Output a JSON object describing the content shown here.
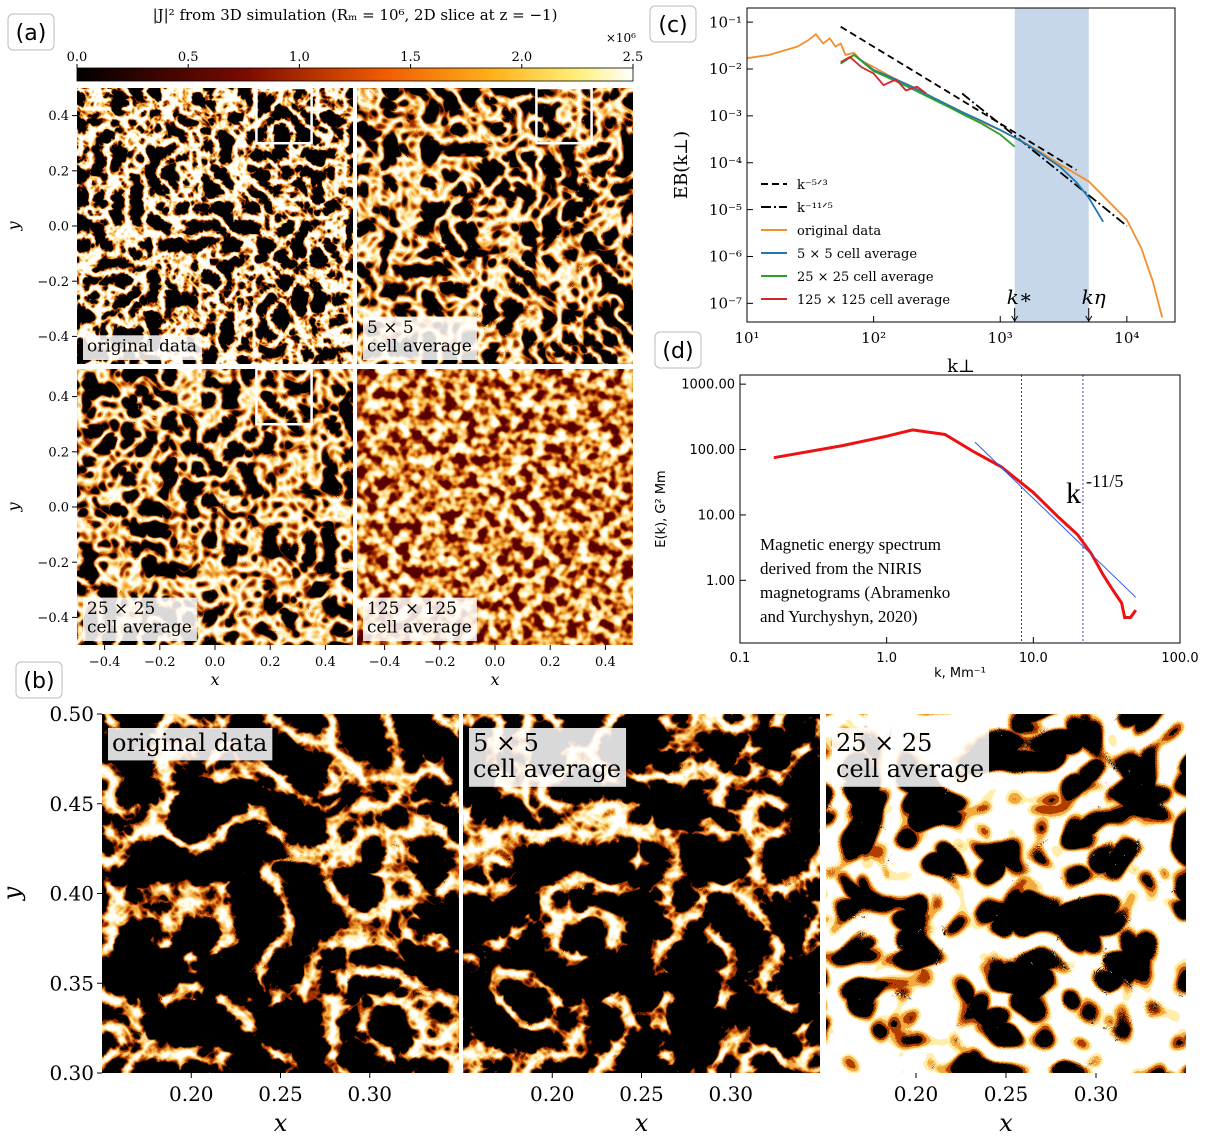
{
  "chart_data": [
    {
      "type": "heatmap",
      "panel_label": "(a)",
      "title": "|J|² from 3D simulation (Rₘ = 10⁶, 2D slice at z = −1)",
      "colorbar": {
        "lim": [
          0,
          2.5
        ],
        "scale_label": "×10⁶",
        "ticks": [
          {
            "value": 0,
            "label": "0.0"
          },
          0.5,
          {
            "value": 1,
            "label": "1.0"
          },
          1.5,
          {
            "value": 2,
            "label": "2.0"
          },
          2.5
        ]
      },
      "xlabel": "x",
      "ylabel": "y",
      "xlim": [
        -0.5,
        0.5
      ],
      "ylim": [
        -0.5,
        0.5
      ],
      "xticks": [
        {
          "value": -0.4,
          "label": "−0.4"
        },
        {
          "value": -0.2,
          "label": "−0.2"
        },
        {
          "value": 0,
          "label": "0.0"
        },
        0.2,
        0.4
      ],
      "yticks": [
        {
          "value": -0.4,
          "label": "−0.4"
        },
        {
          "value": -0.2,
          "label": "−0.2"
        },
        {
          "value": 0,
          "label": "0.0"
        },
        0.2,
        0.4
      ],
      "panels": [
        {
          "label": [
            "original data"
          ],
          "zoom_box": true
        },
        {
          "label": [
            "5 × 5",
            "cell average"
          ],
          "zoom_box": true
        },
        {
          "label": [
            "25 × 25",
            "cell average"
          ],
          "zoom_box": true
        },
        {
          "label": [
            "125 × 125",
            "cell average"
          ],
          "zoom_box": false
        }
      ]
    },
    {
      "type": "line",
      "panel_label": "(c)",
      "log_x": true,
      "log_y": true,
      "xlabel": "k⊥",
      "ylabel": "EB(k⊥)",
      "xlim": [
        10,
        24000
      ],
      "ylim": [
        4e-08,
        0.2
      ],
      "xticks": [
        {
          "value": 10,
          "label": "10¹"
        },
        {
          "value": 100,
          "label": "10²"
        },
        {
          "value": 1000,
          "label": "10³"
        },
        {
          "value": 10000,
          "label": "10⁴"
        }
      ],
      "yticks": [
        {
          "value": 1e-07,
          "label": "10⁻⁷"
        },
        {
          "value": 1e-06,
          "label": "10⁻⁶"
        },
        {
          "value": 1e-05,
          "label": "10⁻⁵"
        },
        {
          "value": 0.0001,
          "label": "10⁻⁴"
        },
        {
          "value": 0.001,
          "label": "10⁻³"
        },
        {
          "value": 0.01,
          "label": "10⁻²"
        },
        {
          "value": 0.1,
          "label": "10⁻¹"
        }
      ],
      "shade": [
        1300,
        5000
      ],
      "shade_color": "#c5d7e8",
      "annotations": [
        "k∗",
        "kη"
      ],
      "legend": "lower left",
      "series": [
        {
          "name": "k⁻⁵ᐟ³",
          "color": "#000000",
          "dash": "dashed",
          "x": [
            55,
            4000
          ],
          "values": [
            0.08,
            7e-05
          ]
        },
        {
          "name": "k⁻¹¹ᐟ⁵",
          "color": "#000000",
          "dash": "dashdot",
          "x": [
            500,
            10000
          ],
          "values": [
            0.003,
            4.5e-06
          ]
        },
        {
          "name": "original data",
          "color": "#f28e2b",
          "x": [
            10,
            15,
            20,
            25,
            30,
            35,
            40,
            45,
            50,
            55,
            60,
            70,
            80,
            100,
            150,
            200,
            300,
            500,
            700,
            1000,
            1500,
            2000,
            3000,
            5000,
            7000,
            10000,
            13000,
            16000,
            19000
          ],
          "values": [
            0.017,
            0.02,
            0.025,
            0.03,
            0.04,
            0.055,
            0.035,
            0.045,
            0.03,
            0.035,
            0.02,
            0.022,
            0.015,
            0.011,
            0.006,
            0.0042,
            0.0024,
            0.0012,
            0.00075,
            0.0005,
            0.00028,
            0.00018,
            9e-05,
            4e-05,
            1.6e-05,
            6e-06,
            1.5e-06,
            3e-07,
            5e-08
          ]
        },
        {
          "name": "5 × 5 cell average",
          "color": "#1f77b4",
          "x": [
            55,
            70,
            100,
            150,
            200,
            300,
            500,
            700,
            1000,
            1500,
            2000,
            3000,
            4000,
            5000,
            6500
          ],
          "values": [
            0.013,
            0.02,
            0.0095,
            0.006,
            0.0042,
            0.0024,
            0.0012,
            0.0008,
            0.0005,
            0.00028,
            0.00017,
            8e-05,
            3.8e-05,
            1.8e-05,
            5.5e-06
          ]
        },
        {
          "name": "25 × 25 cell average",
          "color": "#2ca02c",
          "x": [
            55,
            70,
            100,
            150,
            200,
            300,
            400,
            500,
            700,
            1000,
            1300
          ],
          "values": [
            0.013,
            0.02,
            0.009,
            0.0055,
            0.0038,
            0.0022,
            0.0015,
            0.0011,
            0.0007,
            0.0004,
            0.00022
          ]
        },
        {
          "name": "125 × 125 cell average",
          "color": "#d62728",
          "x": [
            55,
            65,
            80,
            100,
            120,
            150,
            180,
            220,
            260
          ],
          "values": [
            0.014,
            0.018,
            0.011,
            0.008,
            0.0045,
            0.006,
            0.0035,
            0.0042,
            0.003
          ]
        }
      ]
    },
    {
      "type": "line",
      "panel_label": "(d)",
      "log_x": true,
      "log_y": true,
      "xlabel": "k, Mm⁻¹",
      "ylabel": "E(k), G² Mm",
      "xlim": [
        0.1,
        100
      ],
      "ylim": [
        0.11,
        1380
      ],
      "xticks": [
        0.1,
        {
          "value": 1,
          "label": "1.0"
        },
        {
          "value": 10,
          "label": "10.0"
        },
        {
          "value": 100,
          "label": "100.0"
        }
      ],
      "yticks": [
        {
          "value": 1,
          "label": "1.00"
        },
        {
          "value": 10,
          "label": "10.00"
        },
        {
          "value": 100,
          "label": "100.00"
        },
        {
          "value": 1000,
          "label": "1000.00"
        }
      ],
      "vlines": [
        8.3,
        21.8
      ],
      "vline_colors": [
        "#444444",
        "#3344cc"
      ],
      "annotation": {
        "text": "k",
        "sup": "-11/5"
      },
      "note": [
        "Magnetic energy spectrum",
        "derived from the NIRIS",
        "magnetograms (Abramenko",
        "and Yurchyshyn, 2020)"
      ],
      "series": [
        {
          "color": "#ee1111",
          "width": 3,
          "x": [
            0.17,
            0.5,
            1.0,
            1.5,
            2.5,
            4,
            6,
            10,
            15,
            20,
            25,
            30,
            35,
            40,
            42,
            46,
            50
          ],
          "values": [
            75,
            115,
            160,
            200,
            170,
            90,
            55,
            22,
            9,
            5,
            2.5,
            1.2,
            0.7,
            0.45,
            0.27,
            0.27,
            0.35
          ]
        },
        {
          "color": "#3355ee",
          "width": 1,
          "x": [
            4,
            50
          ],
          "values": [
            130,
            0.55
          ]
        }
      ]
    },
    {
      "type": "heatmap",
      "panel_label": "(b)",
      "xlabel": "x",
      "ylabel": "y",
      "xlim": [
        0.15,
        0.35
      ],
      "ylim": [
        0.3,
        0.5
      ],
      "xticks": [
        {
          "value": 0.2,
          "label": "0.20"
        },
        0.25,
        {
          "value": 0.3,
          "label": "0.30"
        }
      ],
      "yticks": [
        {
          "value": 0.3,
          "label": "0.30"
        },
        0.35,
        {
          "value": 0.4,
          "label": "0.40"
        },
        0.45,
        {
          "value": 0.5,
          "label": "0.50"
        }
      ],
      "panels": [
        {
          "label": [
            "original data"
          ]
        },
        {
          "label": [
            "5 × 5",
            "cell average"
          ]
        },
        {
          "label": [
            "25 × 25",
            "cell average"
          ]
        }
      ]
    }
  ]
}
